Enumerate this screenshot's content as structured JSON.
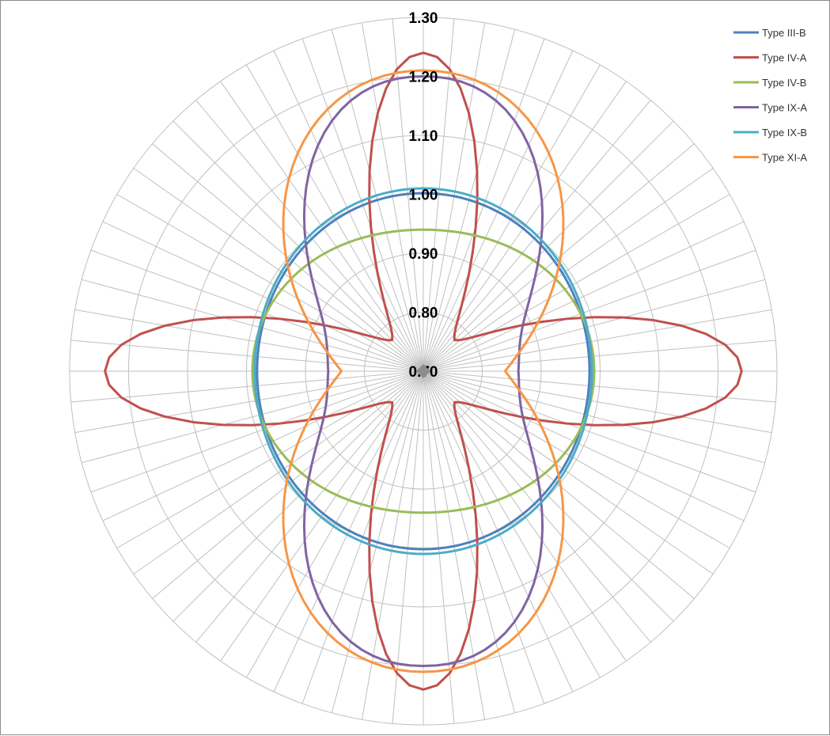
{
  "chart_data": {
    "type": "radar",
    "radial_range": [
      0.7,
      1.3
    ],
    "radial_ticks": [
      "0.70",
      "0.80",
      "0.90",
      "1.00",
      "1.10",
      "1.20",
      "1.30"
    ],
    "angular_spokes": 72,
    "grid": true,
    "legend_position": "top-right",
    "colors": {
      "Type III-B": "#4f81bd",
      "Type IV-A": "#c0504d",
      "Type IV-B": "#9bbb59",
      "Type IX-A": "#8064a2",
      "Type IX-B": "#4bacc6",
      "Type XI-A": "#f79646"
    },
    "series": [
      {
        "name": "Type III-B",
        "shape": "circle",
        "base": 0.995,
        "amp": 0.0,
        "half_width_deg": 45,
        "power": 2,
        "axis_deg": 0
      },
      {
        "name": "Type IV-A",
        "shape": "cross",
        "base": 0.77,
        "amp": 0.47,
        "half_width_deg": 21,
        "power": 2,
        "axis_deg": 0
      },
      {
        "name": "Type IV-B",
        "shape": "circle",
        "base": 0.995,
        "amp": 0.0,
        "half_width_deg": 45,
        "power": 2,
        "axis_deg": 0
      },
      {
        "name": "Type IX-A",
        "shape": "lobes",
        "base": 0.86,
        "amp": 0.34,
        "half_width_deg": 44,
        "power": 2.4,
        "axis_deg": 0
      },
      {
        "name": "Type IX-B",
        "shape": "circle",
        "base": 1.0,
        "amp": 0.0,
        "half_width_deg": 45,
        "power": 2,
        "axis_deg": 0
      },
      {
        "name": "Type XI-A",
        "shape": "lobes",
        "base": 0.81,
        "amp": 0.4,
        "half_width_deg": 58,
        "power": 2.2,
        "axis_deg": 0
      }
    ]
  }
}
